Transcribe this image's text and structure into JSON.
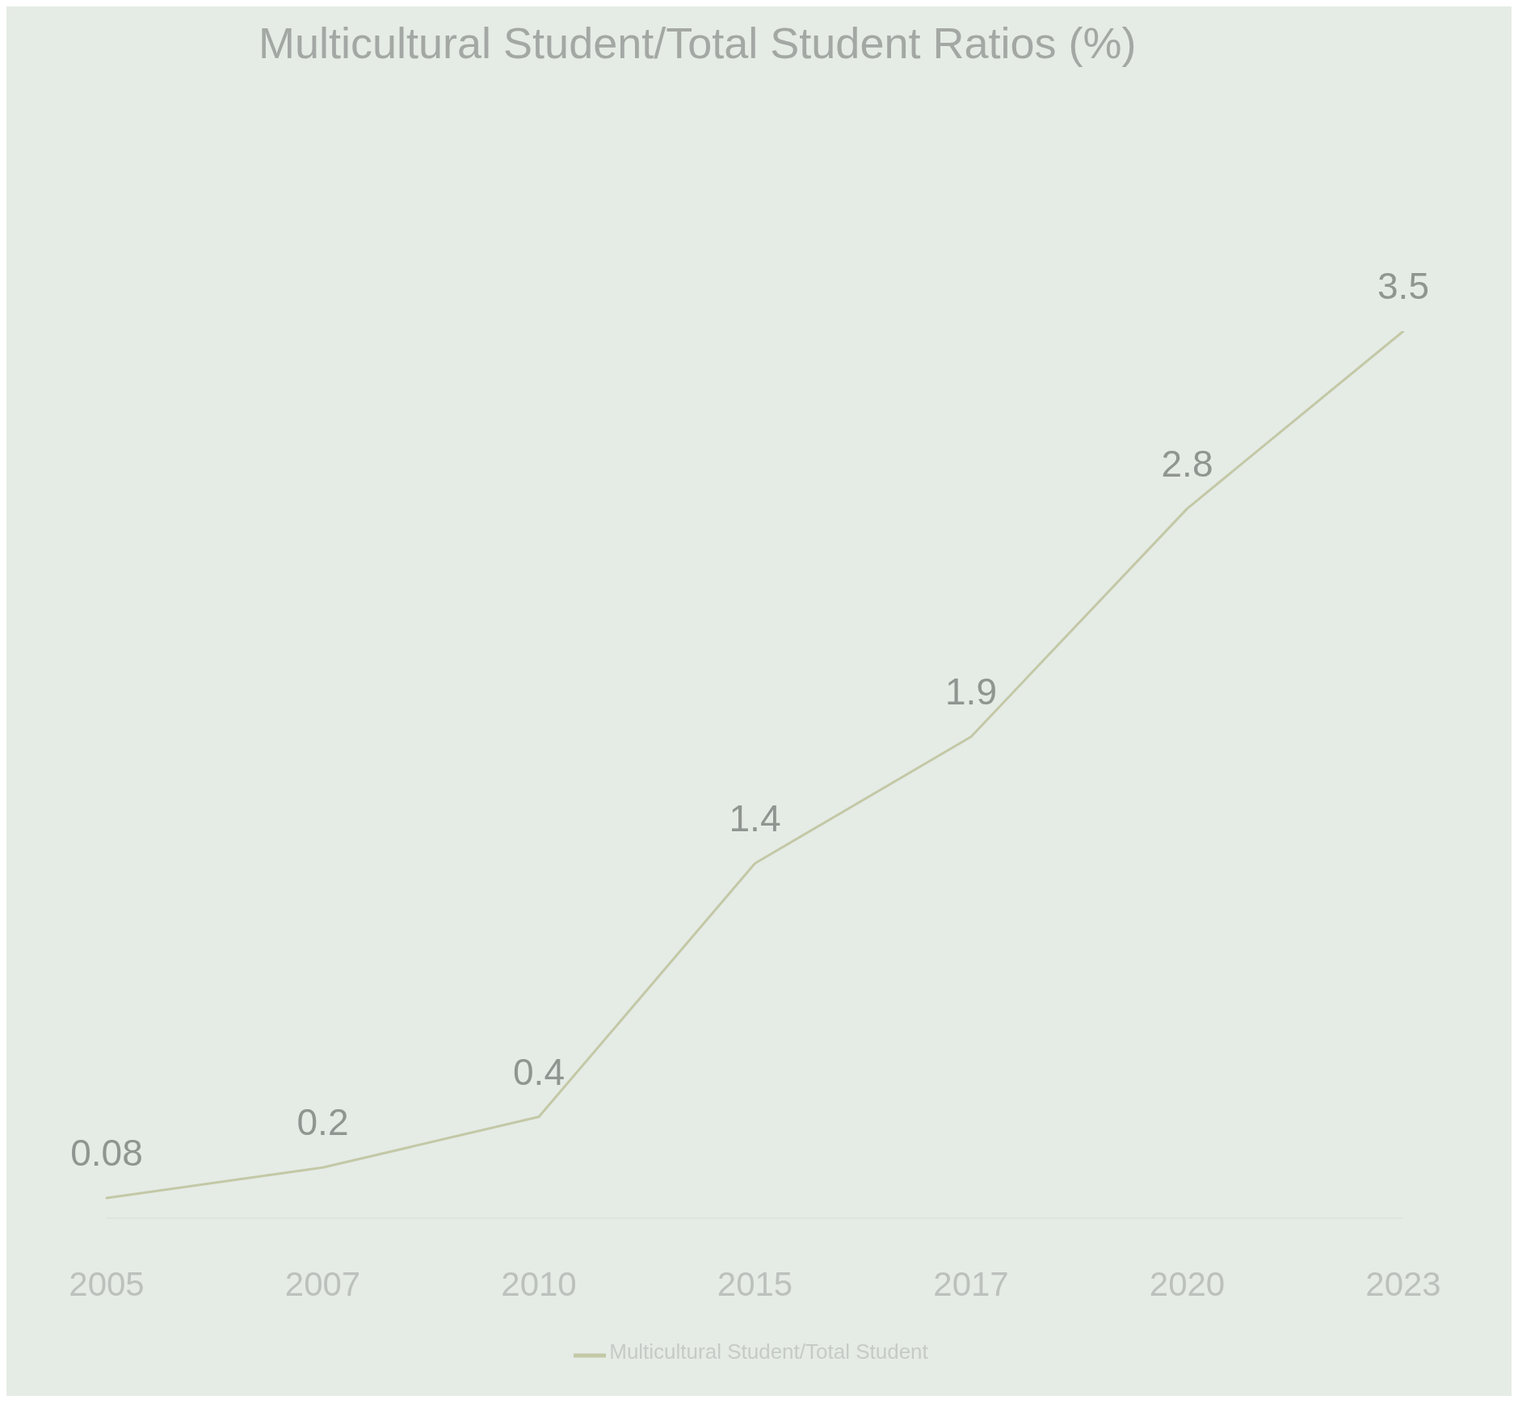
{
  "chart_data": {
    "type": "line",
    "title": "Multicultural Student/Total Student Ratios (%)",
    "categories": [
      "2005",
      "2007",
      "2010",
      "2015",
      "2017",
      "2020",
      "2023"
    ],
    "series": [
      {
        "name": "Multicultural Student/Total Student",
        "color": "#c3c8a6",
        "values": [
          0.08,
          0.2,
          0.4,
          1.4,
          1.9,
          2.8,
          3.5
        ]
      }
    ],
    "data_labels": true,
    "legend": "bottom",
    "marker": "none",
    "line_style": "solid",
    "tick_labels": "x"
  }
}
